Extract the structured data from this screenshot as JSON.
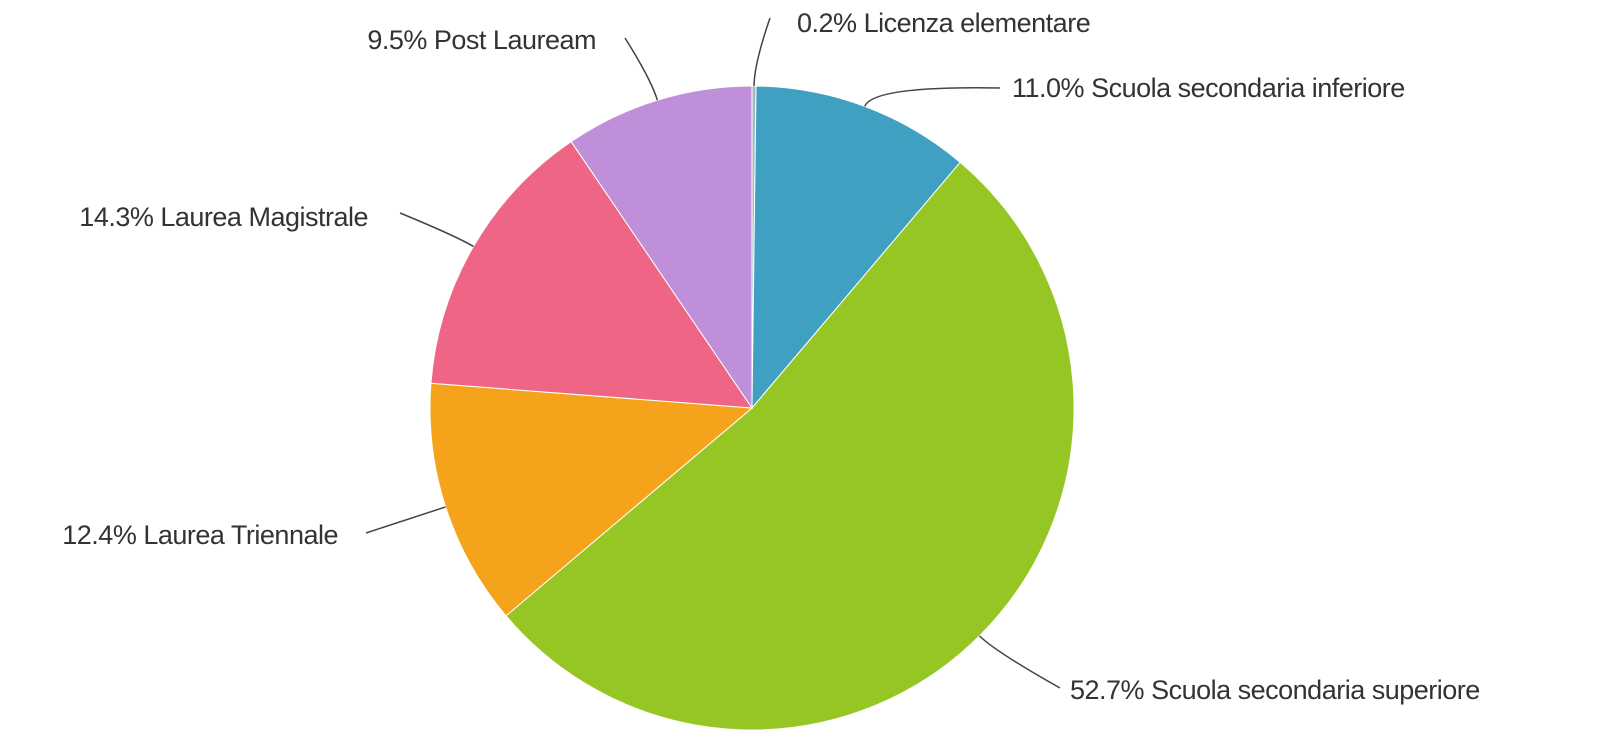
{
  "chart_data": {
    "type": "pie",
    "categories": [
      "Licenza elementare",
      "Scuola secondaria inferiore",
      "Scuola secondaria superiore",
      "Laurea Triennale",
      "Laurea Magistrale",
      "Post Lauream"
    ],
    "values": [
      0.2,
      11.0,
      52.7,
      12.4,
      14.3,
      9.5
    ],
    "value_labels": [
      "0.2%",
      "11.0%",
      "52.7%",
      "12.4%",
      "14.3%",
      "9.5%"
    ],
    "colors": [
      "#a7b8c8",
      "#40a0c2",
      "#95c623",
      "#f5a31a",
      "#ef6585",
      "#bf8fd9"
    ]
  }
}
